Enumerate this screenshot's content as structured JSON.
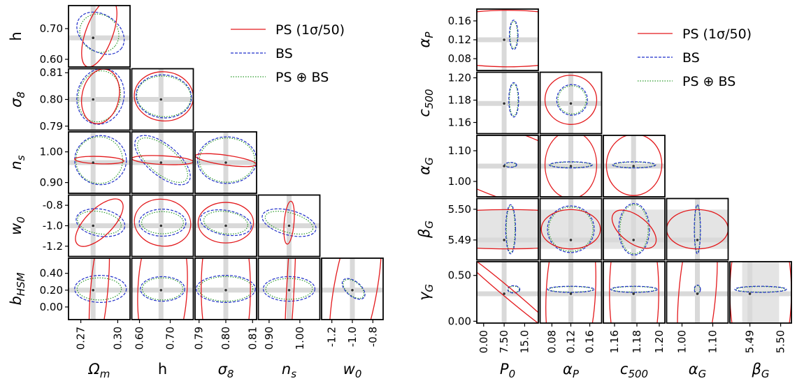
{
  "chart_data": [
    {
      "type": "corner",
      "parameters": [
        {
          "label": "Ωm",
          "sub": "m",
          "base": "Ω",
          "fid": 0.28,
          "range": [
            0.26,
            0.31
          ],
          "ticks": [
            "0.27",
            "0.30"
          ],
          "tick_values": [
            0.27,
            0.3
          ]
        },
        {
          "label": "h",
          "sub": "",
          "base": "h",
          "fid": 0.67,
          "range": [
            0.575,
            0.775
          ],
          "ticks": [
            "0.60",
            "0.70"
          ],
          "tick_values": [
            0.6,
            0.7
          ]
        },
        {
          "label": "σ8",
          "sub": "8",
          "base": "σ",
          "fid": 0.8,
          "range": [
            0.7885,
            0.8115
          ],
          "ticks": [
            "0.79",
            "0.80",
            "0.81"
          ],
          "tick_values": [
            0.79,
            0.8,
            0.81
          ]
        },
        {
          "label": "ns",
          "sub": "s",
          "base": "n",
          "fid": 0.965,
          "range": [
            0.865,
            1.065
          ],
          "ticks": [
            "0.90",
            "1.00"
          ],
          "tick_values": [
            0.9,
            1.0
          ]
        },
        {
          "label": "w0",
          "sub": "0",
          "base": "w",
          "fid": -1.0,
          "range": [
            -1.3,
            -0.7
          ],
          "ticks": [
            "-1.2",
            "-1.0",
            "-0.8"
          ],
          "tick_values": [
            -1.2,
            -1.0,
            -0.8
          ]
        },
        {
          "label": "bHSM",
          "sub": "HSM",
          "base": "b",
          "fid": 0.2,
          "range": [
            -0.15,
            0.58
          ],
          "ticks": [
            "0.00",
            "0.20",
            "0.40"
          ],
          "tick_values": [
            0.0,
            0.2,
            0.4
          ]
        }
      ],
      "legend": [
        "PS (1σ/50)",
        "BS",
        "PS ⊕ BS"
      ],
      "legend_position": "top-right"
    },
    {
      "type": "corner",
      "parameters": [
        {
          "label": "P0",
          "sub": "0",
          "base": "P",
          "fid": 7.5,
          "range": [
            -2.5,
            20.0
          ],
          "ticks": [
            "0.00",
            "7.50",
            "15.0"
          ],
          "tick_values": [
            0.0,
            7.5,
            15.0
          ]
        },
        {
          "label": "αP",
          "sub": "P",
          "base": "α",
          "fid": 0.12,
          "range": [
            0.055,
            0.185
          ],
          "ticks": [
            "0.08",
            "0.12",
            "0.16"
          ],
          "tick_values": [
            0.08,
            0.12,
            0.16
          ]
        },
        {
          "label": "c500",
          "sub": "500",
          "base": "c",
          "fid": 1.177,
          "range": [
            1.15,
            1.205
          ],
          "ticks": [
            "1.16",
            "1.18",
            "1.20"
          ],
          "tick_values": [
            1.16,
            1.18,
            1.2
          ]
        },
        {
          "label": "αG",
          "sub": "G",
          "base": "α",
          "fid": 1.05,
          "range": [
            0.95,
            1.15
          ],
          "ticks": [
            "1.00",
            "1.10"
          ],
          "tick_values": [
            1.0,
            1.1
          ]
        },
        {
          "label": "βG",
          "sub": "G",
          "base": "β",
          "fid": 5.49,
          "range": [
            5.4835,
            5.5035
          ],
          "ticks": [
            "5.49",
            "5.50"
          ],
          "tick_values": [
            5.49,
            5.5
          ]
        },
        {
          "label": "γG",
          "sub": "G",
          "base": "γ",
          "fid": 0.3,
          "range": [
            -0.02,
            0.65
          ],
          "ticks": [
            "0.00",
            "0.50"
          ],
          "tick_values": [
            0.0,
            0.5
          ]
        }
      ],
      "legend": [
        "PS (1σ/50)",
        "BS",
        "PS ⊕ BS"
      ],
      "legend_position": "top-right"
    }
  ],
  "colors": {
    "ps": "#e3191c",
    "bs": "#1f2ec9",
    "comb": "#2b9a2b",
    "band": "#d9d9d9",
    "fill": "#e4e4e4"
  }
}
